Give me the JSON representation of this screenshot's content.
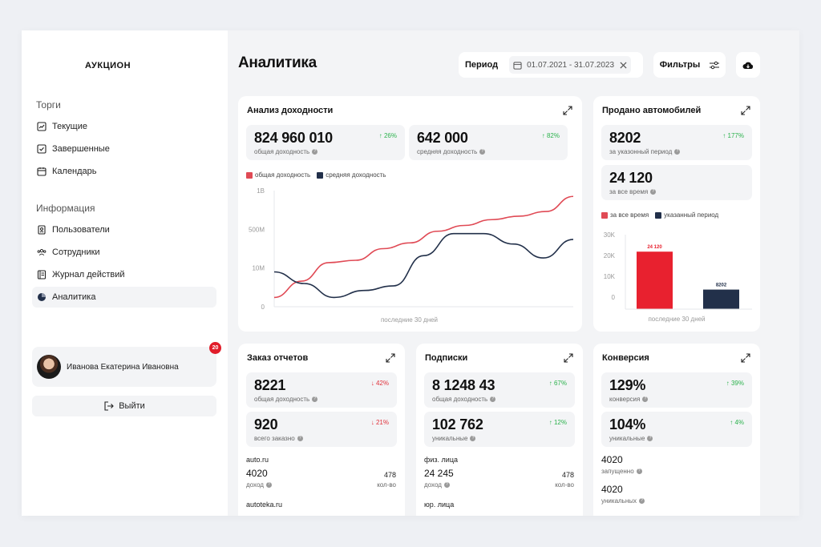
{
  "app": {
    "logo": "АУКЦИОН"
  },
  "sidebar": {
    "sections": [
      {
        "title": "Торги",
        "items": [
          {
            "label": "Текущие",
            "icon": "chart-line-icon"
          },
          {
            "label": "Завершенные",
            "icon": "checkbox-icon"
          },
          {
            "label": "Календарь",
            "icon": "calendar-icon"
          }
        ]
      },
      {
        "title": "Информация",
        "items": [
          {
            "label": "Пользователи",
            "icon": "user-badge-icon"
          },
          {
            "label": "Сотрудники",
            "icon": "users-icon"
          },
          {
            "label": "Журнал действий",
            "icon": "journal-icon"
          },
          {
            "label": "Аналитика",
            "icon": "pie-icon",
            "active": true
          }
        ]
      }
    ],
    "user": {
      "name": "Иванова Екатерина Ивановна",
      "notifications": "20"
    },
    "logout_label": "Выйти"
  },
  "header": {
    "title": "Аналитика",
    "period_label": "Период",
    "date_range": "01.07.2021 - 31.07.2023",
    "filters_label": "Фильтры"
  },
  "cards": {
    "income": {
      "title": "Анализ доходности",
      "stats": [
        {
          "value": "824 960 010",
          "label": "общая доходность",
          "change": "26%",
          "dir": "up"
        },
        {
          "value": "642 000",
          "label": "средняя доходность",
          "change": "82%",
          "dir": "up"
        }
      ]
    },
    "cars": {
      "title": "Продано автомобилей",
      "stats": [
        {
          "value": "8202",
          "label": "за указонный период",
          "change": "177%",
          "dir": "up"
        },
        {
          "value": "24 120",
          "label": "за все время"
        }
      ]
    },
    "reports": {
      "title": "Заказ отчетов",
      "stats": [
        {
          "value": "8221",
          "label": "общая доходность",
          "change": "42%",
          "dir": "down"
        },
        {
          "value": "920",
          "label": "всего заказно",
          "change": "21%",
          "dir": "down"
        }
      ],
      "list": [
        {
          "source": "auto.ru",
          "value": "4020",
          "value_label": "доход",
          "count": "478",
          "count_label": "кол-во"
        },
        {
          "source": "autoteka.ru"
        }
      ]
    },
    "subs": {
      "title": "Подписки",
      "stats": [
        {
          "value": "8 1248 43",
          "label": "общая доходность",
          "change": "67%",
          "dir": "up"
        },
        {
          "value": "102 762",
          "label": "уникальные",
          "change": "12%",
          "dir": "up"
        }
      ],
      "list": [
        {
          "source": "физ. лица",
          "value": "24 245",
          "value_label": "доход",
          "count": "478",
          "count_label": "кол-во"
        },
        {
          "source": "юр. лица"
        }
      ]
    },
    "conversion": {
      "title": "Конверсия",
      "stats": [
        {
          "value": "129%",
          "label": "конверсия",
          "change": "39%",
          "dir": "up"
        },
        {
          "value": "104%",
          "label": "уникальные",
          "change": "4%",
          "dir": "up"
        }
      ],
      "list": [
        {
          "value": "4020",
          "label": "запущенно"
        },
        {
          "value": "4020",
          "label": "уникальных"
        }
      ]
    }
  },
  "chart_data": [
    {
      "type": "line",
      "legend": "top-left",
      "xlabel": "последние 30 дней",
      "y_ticks": [
        "0",
        "10M",
        "500M",
        "1B"
      ],
      "colors": {
        "общая доходность": "#e04a55",
        "средняя доходность": "#22304a"
      },
      "series": [
        {
          "name": "общая доходность",
          "values": [
            0.08,
            0.22,
            0.38,
            0.4,
            0.5,
            0.55,
            0.65,
            0.7,
            0.75,
            0.78,
            0.82,
            0.95
          ]
        },
        {
          "name": "средняя доходность",
          "values": [
            0.3,
            0.2,
            0.08,
            0.14,
            0.18,
            0.44,
            0.63,
            0.63,
            0.54,
            0.42,
            0.58
          ]
        }
      ]
    },
    {
      "type": "bar",
      "legend": "top-left",
      "xlabel": "последние 30 дней",
      "y_ticks": [
        "0",
        "10K",
        "20K",
        "30K"
      ],
      "ylim": [
        0,
        30000
      ],
      "series": [
        {
          "name": "за все время",
          "value": 24120,
          "label": "24 120",
          "color": "#e8212f"
        },
        {
          "name": "указанный период",
          "value": 8202,
          "label": "8202",
          "color": "#22304a"
        }
      ]
    }
  ]
}
